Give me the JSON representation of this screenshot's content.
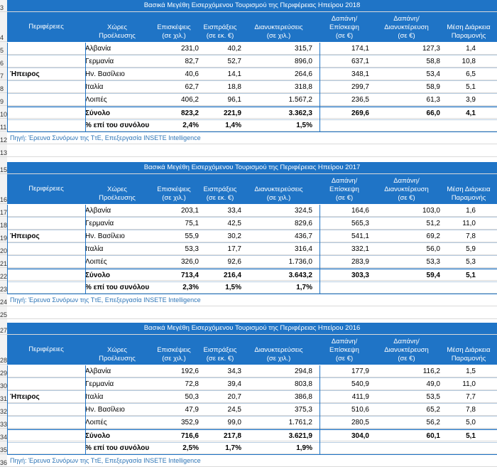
{
  "row_numbers": [
    "3",
    "4",
    "5",
    "6",
    "7",
    "8",
    "9",
    "10",
    "11",
    "12",
    "13",
    "14",
    "15",
    "16",
    "17",
    "18",
    "19",
    "20",
    "21",
    "22",
    "23",
    "24",
    "25",
    "26",
    "27",
    "28",
    "29",
    "30",
    "31",
    "32",
    "33",
    "34",
    "35",
    "36"
  ],
  "headers": {
    "region": "Περιφέρειες",
    "country_l1": "Χώρες",
    "country_l2": "Προέλευσης",
    "visits_l1": "Επισκέψεις",
    "visits_l2": "(σε χιλ.)",
    "receipts_l1": "Εισπράξεις",
    "receipts_l2": "(σε εκ. €)",
    "nights_l1": "Διανυκτερεύσεις",
    "nights_l2": "(σε χιλ.)",
    "spv_l1": "Δαπάνη/",
    "spv_l2": "Επίσκεψη",
    "spv_l3": "(σε €)",
    "spn_l1": "Δαπάνη/",
    "spn_l2": "Διανυκτέρευση",
    "spn_l3": "(σε €)",
    "stay_l1": "Μέση Διάρκεια",
    "stay_l2": "Παραμονής"
  },
  "tables": [
    {
      "title": "Βασικά Μεγέθη Εισερχόμενου Τουρισμού της Περιφέρειας Ηπείρου 2018",
      "region": "Ήπειρος",
      "rows": [
        {
          "country": "Αλβανία",
          "visits": "231,0",
          "receipts": "40,2",
          "nights": "315,7",
          "spv": "174,1",
          "spn": "127,3",
          "stay": "1,4"
        },
        {
          "country": "Γερμανία",
          "visits": "82,7",
          "receipts": "52,7",
          "nights": "896,0",
          "spv": "637,1",
          "spn": "58,8",
          "stay": "10,8"
        },
        {
          "country": "Ην. Βασίλειο",
          "visits": "40,6",
          "receipts": "14,1",
          "nights": "264,6",
          "spv": "348,1",
          "spn": "53,4",
          "stay": "6,5"
        },
        {
          "country": "Ιταλία",
          "visits": "62,7",
          "receipts": "18,8",
          "nights": "318,8",
          "spv": "299,7",
          "spn": "58,9",
          "stay": "5,1"
        },
        {
          "country": "Λοιπές",
          "visits": "406,2",
          "receipts": "96,1",
          "nights": "1.567,2",
          "spv": "236,5",
          "spn": "61,3",
          "stay": "3,9"
        }
      ],
      "total": {
        "label": "Σύνολο",
        "visits": "823,2",
        "receipts": "221,9",
        "nights": "3.362,3",
        "spv": "269,6",
        "spn": "66,0",
        "stay": "4,1"
      },
      "share": {
        "label": "% επί του συνόλου",
        "visits": "2,4%",
        "receipts": "1,4%",
        "nights": "1,5%"
      },
      "source": "Πηγή: Έρευνα Συνόρων της ΤτΕ, Επεξεργασία INSETE Intelligence"
    },
    {
      "title": "Βασικά Μεγέθη Εισερχόμενου Τουρισμού της Περιφέρειας Ηπείρου 2017",
      "region": "Ήπειρος",
      "rows": [
        {
          "country": "Αλβανία",
          "visits": "203,1",
          "receipts": "33,4",
          "nights": "324,5",
          "spv": "164,6",
          "spn": "103,0",
          "stay": "1,6"
        },
        {
          "country": "Γερμανία",
          "visits": "75,1",
          "receipts": "42,5",
          "nights": "829,6",
          "spv": "565,3",
          "spn": "51,2",
          "stay": "11,0"
        },
        {
          "country": "Ην. Βασίλειο",
          "visits": "55,9",
          "receipts": "30,2",
          "nights": "436,7",
          "spv": "541,1",
          "spn": "69,2",
          "stay": "7,8"
        },
        {
          "country": "Ιταλία",
          "visits": "53,3",
          "receipts": "17,7",
          "nights": "316,4",
          "spv": "332,1",
          "spn": "56,0",
          "stay": "5,9"
        },
        {
          "country": "Λοιπές",
          "visits": "326,0",
          "receipts": "92,6",
          "nights": "1.736,0",
          "spv": "283,9",
          "spn": "53,3",
          "stay": "5,3"
        }
      ],
      "total": {
        "label": "Σύνολο",
        "visits": "713,4",
        "receipts": "216,4",
        "nights": "3.643,2",
        "spv": "303,3",
        "spn": "59,4",
        "stay": "5,1"
      },
      "share": {
        "label": "% επί του συνόλου",
        "visits": "2,3%",
        "receipts": "1,5%",
        "nights": "1,7%"
      },
      "source": "Πηγή: Έρευνα Συνόρων της ΤτΕ, Επεξεργασία INSETE Intelligence"
    },
    {
      "title": "Βασικά Μεγέθη Εισερχόμενου Τουρισμού της Περιφέρειας Ηπείρου 2016",
      "region": "Ήπειρος",
      "rows": [
        {
          "country": "Αλβανία",
          "visits": "192,6",
          "receipts": "34,3",
          "nights": "294,8",
          "spv": "177,9",
          "spn": "116,2",
          "stay": "1,5"
        },
        {
          "country": "Γερμανία",
          "visits": "72,8",
          "receipts": "39,4",
          "nights": "803,8",
          "spv": "540,9",
          "spn": "49,0",
          "stay": "11,0"
        },
        {
          "country": "Ιταλία",
          "visits": "50,3",
          "receipts": "20,7",
          "nights": "386,8",
          "spv": "411,9",
          "spn": "53,5",
          "stay": "7,7"
        },
        {
          "country": "Ην. Βασίλειο",
          "visits": "47,9",
          "receipts": "24,5",
          "nights": "375,3",
          "spv": "510,6",
          "spn": "65,2",
          "stay": "7,8"
        },
        {
          "country": "Λοιπές",
          "visits": "352,9",
          "receipts": "99,0",
          "nights": "1.761,2",
          "spv": "280,5",
          "spn": "56,2",
          "stay": "5,0"
        }
      ],
      "total": {
        "label": "Σύνολο",
        "visits": "716,6",
        "receipts": "217,8",
        "nights": "3.621,9",
        "spv": "304,0",
        "spn": "60,1",
        "stay": "5,1"
      },
      "share": {
        "label": "% επί του συνόλου",
        "visits": "2,5%",
        "receipts": "1,7%",
        "nights": "1,9%"
      },
      "source": "Πηγή: Έρευνα Συνόρων της ΤτΕ, Επεξεργασία INSETE Intelligence"
    }
  ]
}
